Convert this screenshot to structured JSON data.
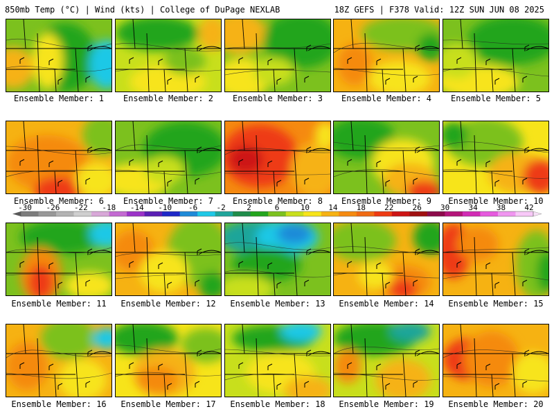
{
  "header": {
    "left_title": "850mb Temp (°C) | Wind (kts) | College of DuPage NEXLAB",
    "right_title": "18Z GEFS | F378 Valid: 12Z SUN JUN 08 2025"
  },
  "caption_prefix": "Ensemble Member: ",
  "panels": [
    {
      "member": "1",
      "base": "#7cc11e",
      "blobs": [
        [
          "#23a51d",
          85,
          55,
          45,
          50
        ],
        [
          "#1fc8e6",
          145,
          65,
          25,
          35
        ],
        [
          "#f6b212",
          10,
          70,
          30,
          30
        ],
        [
          "#f7e41a",
          60,
          60,
          22,
          40
        ]
      ]
    },
    {
      "member": "2",
      "base": "#c8df1c",
      "blobs": [
        [
          "#23a51d",
          60,
          20,
          60,
          25
        ],
        [
          "#f7e41a",
          75,
          90,
          55,
          25
        ],
        [
          "#f6b212",
          140,
          20,
          20,
          25
        ],
        [
          "#7cc11e",
          100,
          60,
          30,
          20
        ]
      ]
    },
    {
      "member": "3",
      "base": "#7cc11e",
      "blobs": [
        [
          "#f6b212",
          20,
          20,
          40,
          30
        ],
        [
          "#f7e41a",
          25,
          85,
          40,
          30
        ],
        [
          "#23a51d",
          110,
          30,
          55,
          40
        ],
        [
          "#c8df1c",
          70,
          75,
          30,
          20
        ]
      ]
    },
    {
      "member": "4",
      "base": "#f6b212",
      "blobs": [
        [
          "#7cc11e",
          100,
          20,
          60,
          25
        ],
        [
          "#f58a10",
          30,
          65,
          25,
          30
        ],
        [
          "#f7e41a",
          95,
          85,
          45,
          25
        ],
        [
          "#23a51d",
          140,
          40,
          20,
          20
        ]
      ]
    },
    {
      "member": "5",
      "base": "#7cc11e",
      "blobs": [
        [
          "#23a51d",
          100,
          30,
          65,
          35
        ],
        [
          "#f7e41a",
          50,
          90,
          60,
          25
        ],
        [
          "#c8df1c",
          20,
          60,
          30,
          25
        ]
      ]
    },
    {
      "member": "6",
      "base": "#f6b212",
      "blobs": [
        [
          "#f58a10",
          60,
          60,
          60,
          40
        ],
        [
          "#ee3a12",
          75,
          100,
          35,
          20
        ],
        [
          "#7cc11e",
          140,
          20,
          30,
          30
        ],
        [
          "#f7e41a",
          130,
          85,
          30,
          25
        ]
      ]
    },
    {
      "member": "7",
      "base": "#7cc11e",
      "blobs": [
        [
          "#23a51d",
          100,
          40,
          60,
          40
        ],
        [
          "#f7e41a",
          30,
          85,
          50,
          25
        ],
        [
          "#c8df1c",
          70,
          70,
          30,
          20
        ]
      ]
    },
    {
      "member": "8",
      "base": "#f58a10",
      "blobs": [
        [
          "#ee3a12",
          50,
          50,
          55,
          45
        ],
        [
          "#cd1414",
          30,
          55,
          25,
          20
        ],
        [
          "#f6b212",
          130,
          70,
          35,
          40
        ],
        [
          "#f7e41a",
          145,
          20,
          15,
          20
        ]
      ]
    },
    {
      "member": "9",
      "base": "#7cc11e",
      "blobs": [
        [
          "#23a51d",
          40,
          25,
          50,
          30
        ],
        [
          "#f7e41a",
          100,
          60,
          45,
          35
        ],
        [
          "#f6b212",
          110,
          85,
          40,
          25
        ],
        [
          "#ee3a12",
          130,
          100,
          25,
          15
        ]
      ]
    },
    {
      "member": "10",
      "base": "#f7e41a",
      "blobs": [
        [
          "#7cc11e",
          60,
          30,
          55,
          35
        ],
        [
          "#f6b212",
          110,
          75,
          45,
          30
        ],
        [
          "#ee3a12",
          140,
          80,
          25,
          25
        ],
        [
          "#23a51d",
          15,
          20,
          20,
          20
        ]
      ]
    },
    {
      "member": "11",
      "base": "#7cc11e",
      "blobs": [
        [
          "#23a51d",
          80,
          20,
          60,
          25
        ],
        [
          "#1fc8e6",
          145,
          15,
          25,
          20
        ],
        [
          "#f58a10",
          50,
          75,
          30,
          40
        ],
        [
          "#ee3a12",
          50,
          85,
          18,
          25
        ],
        [
          "#f7e41a",
          120,
          90,
          35,
          20
        ]
      ]
    },
    {
      "member": "12",
      "base": "#f6b212",
      "blobs": [
        [
          "#7cc11e",
          120,
          40,
          45,
          50
        ],
        [
          "#f58a10",
          25,
          40,
          30,
          30
        ],
        [
          "#f7e41a",
          70,
          70,
          35,
          30
        ],
        [
          "#23a51d",
          140,
          90,
          20,
          20
        ]
      ]
    },
    {
      "member": "13",
      "base": "#7cc11e",
      "blobs": [
        [
          "#1fa59a",
          50,
          20,
          60,
          25
        ],
        [
          "#1fc8e6",
          90,
          20,
          45,
          25
        ],
        [
          "#1e8ad8",
          100,
          15,
          25,
          15
        ],
        [
          "#23a51d",
          60,
          60,
          50,
          25
        ],
        [
          "#c8df1c",
          30,
          95,
          40,
          20
        ]
      ]
    },
    {
      "member": "14",
      "base": "#f6b212",
      "blobs": [
        [
          "#7cc11e",
          40,
          25,
          50,
          30
        ],
        [
          "#23a51d",
          140,
          20,
          25,
          25
        ],
        [
          "#f58a10",
          100,
          85,
          40,
          25
        ],
        [
          "#ee3a12",
          100,
          95,
          20,
          15
        ],
        [
          "#f7e41a",
          60,
          75,
          25,
          20
        ]
      ]
    },
    {
      "member": "15",
      "base": "#f6b212",
      "blobs": [
        [
          "#ee3a12",
          15,
          40,
          25,
          40
        ],
        [
          "#f58a10",
          50,
          30,
          30,
          25
        ],
        [
          "#7cc11e",
          135,
          60,
          30,
          50
        ],
        [
          "#23a51d",
          150,
          70,
          15,
          30
        ]
      ]
    },
    {
      "member": "16",
      "base": "#f6b212",
      "blobs": [
        [
          "#7cc11e",
          90,
          20,
          40,
          30
        ],
        [
          "#1fc8e6",
          145,
          20,
          20,
          15
        ],
        [
          "#f58a10",
          30,
          60,
          30,
          35
        ],
        [
          "#f7e41a",
          110,
          80,
          35,
          30
        ]
      ]
    },
    {
      "member": "17",
      "base": "#f7e41a",
      "blobs": [
        [
          "#23a51d",
          40,
          20,
          50,
          25
        ],
        [
          "#f6b212",
          70,
          70,
          45,
          35
        ],
        [
          "#f58a10",
          60,
          80,
          30,
          20
        ],
        [
          "#7cc11e",
          130,
          30,
          35,
          25
        ]
      ]
    },
    {
      "member": "18",
      "base": "#c8df1c",
      "blobs": [
        [
          "#23a51d",
          70,
          20,
          60,
          20
        ],
        [
          "#1fc8e6",
          110,
          10,
          30,
          15
        ],
        [
          "#f7e41a",
          80,
          70,
          50,
          30
        ],
        [
          "#f6b212",
          120,
          95,
          35,
          20
        ]
      ]
    },
    {
      "member": "19",
      "base": "#c8df1c",
      "blobs": [
        [
          "#23a51d",
          60,
          20,
          60,
          25
        ],
        [
          "#1fa59a",
          110,
          10,
          30,
          15
        ],
        [
          "#f6b212",
          100,
          80,
          40,
          30
        ],
        [
          "#f58a10",
          20,
          60,
          20,
          25
        ]
      ]
    },
    {
      "member": "20",
      "base": "#f6b212",
      "blobs": [
        [
          "#ee3a12",
          35,
          50,
          35,
          30
        ],
        [
          "#f58a10",
          70,
          50,
          40,
          40
        ],
        [
          "#f7e41a",
          130,
          70,
          30,
          30
        ]
      ]
    }
  ],
  "colorbar": {
    "labels": [
      "-30",
      "-26",
      "-22",
      "-18",
      "-14",
      "-10",
      "-6",
      "-2",
      "2",
      "6",
      "10",
      "14",
      "18",
      "22",
      "26",
      "30",
      "34",
      "38",
      "42"
    ],
    "colors": [
      "#7d7d7d",
      "#989898",
      "#b3b3b3",
      "#cfcfcf",
      "#d8a8d8",
      "#c36ad2",
      "#9b32c8",
      "#5a1fb4",
      "#1e28c8",
      "#1e8ad8",
      "#1fc8e6",
      "#1fa59a",
      "#1f8c4a",
      "#23a51d",
      "#7cc11e",
      "#c8df1c",
      "#f7e41a",
      "#f6b212",
      "#f58a10",
      "#f06a12",
      "#ee3a12",
      "#cd1414",
      "#a01010",
      "#8c0a4a",
      "#b4147a",
      "#d22ab4",
      "#e65ade",
      "#f096f0",
      "#f8c8f8"
    ]
  }
}
